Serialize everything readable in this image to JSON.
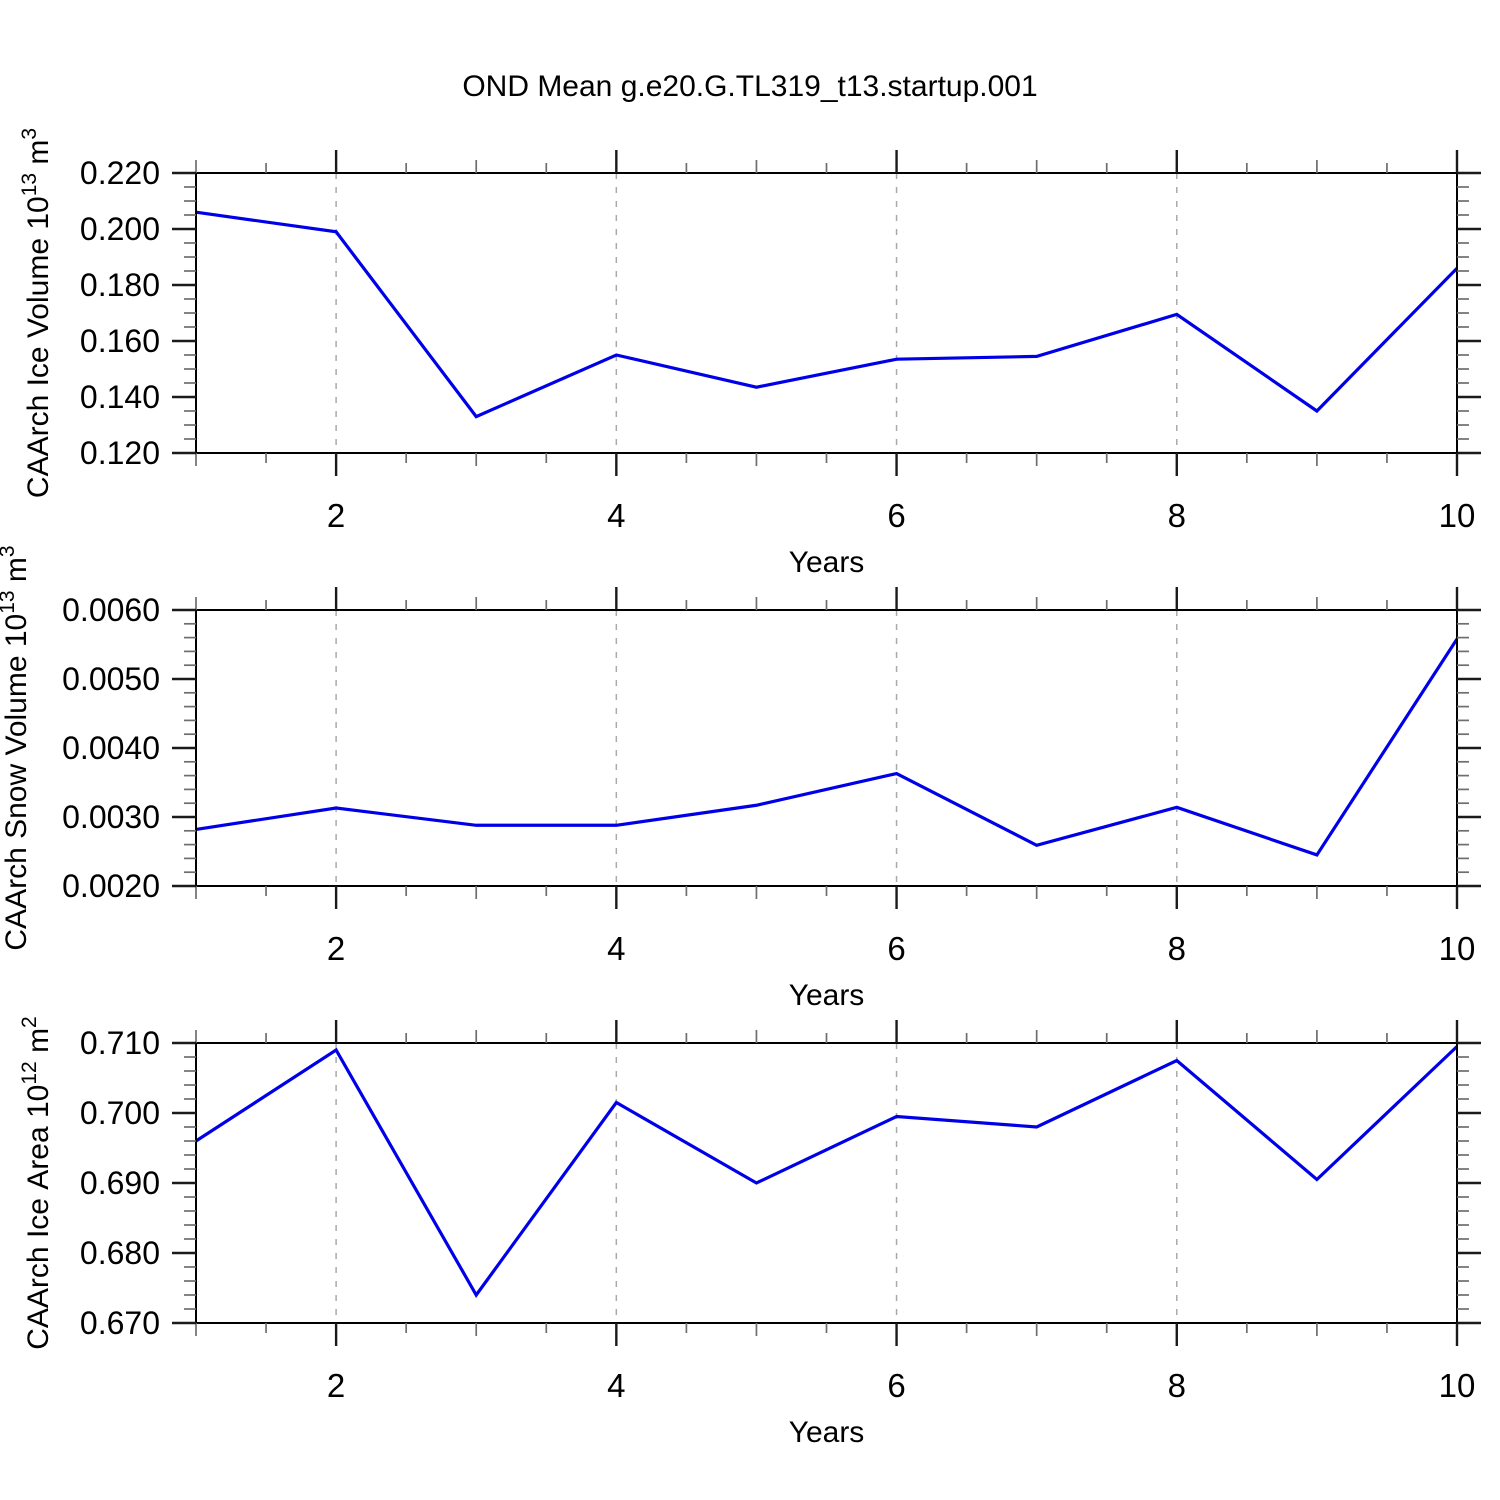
{
  "title": "OND Mean g.e20.G.TL319_t13.startup.001",
  "colors": {
    "line": "#0000e8",
    "grid": "#aaaaaa",
    "axis": "#000000",
    "major_tick": "#1a1a1a",
    "minor_tick": "#6e6e6e",
    "text": "#000000",
    "background": "#ffffff"
  },
  "x_axis": {
    "label": "Years",
    "xlim": [
      1,
      10
    ],
    "major_ticks": [
      2,
      4,
      6,
      8,
      10
    ],
    "major_tick_labels": [
      "2",
      "4",
      "6",
      "8",
      "10"
    ],
    "minor_step": 0.5,
    "gridlines_at": [
      2,
      4,
      6,
      8
    ],
    "grid_style": "dashed"
  },
  "chart_data": [
    {
      "type": "line",
      "name": "caarch-ice-volume",
      "ylabel": "CAArch Ice Volume 10^13 m^3",
      "ylabel_segments": [
        {
          "t": "CAArch Ice Volume 10"
        },
        {
          "t": "13",
          "sup": true
        },
        {
          "t": " m"
        },
        {
          "t": "3",
          "sup": true
        }
      ],
      "xlabel": "Years",
      "x": [
        1,
        2,
        3,
        4,
        5,
        6,
        7,
        8,
        9,
        10
      ],
      "values": [
        0.206,
        0.199,
        0.133,
        0.155,
        0.1435,
        0.1535,
        0.1545,
        0.1695,
        0.135,
        0.186
      ],
      "ylim": [
        0.12,
        0.22
      ],
      "ytick_values": [
        0.12,
        0.14,
        0.16,
        0.18,
        0.2,
        0.22
      ],
      "ytick_labels": [
        "0.120",
        "0.140",
        "0.160",
        "0.180",
        "0.200",
        "0.220"
      ],
      "yminor_step": 0.005,
      "grid": "vertical-dashed",
      "legend": null
    },
    {
      "type": "line",
      "name": "caarch-snow-volume",
      "ylabel": "CAArch Snow Volume 10^13 m^3",
      "ylabel_segments": [
        {
          "t": "CAArch Snow Volume 10"
        },
        {
          "t": "13",
          "sup": true
        },
        {
          "t": " m"
        },
        {
          "t": "3",
          "sup": true
        }
      ],
      "xlabel": "Years",
      "x": [
        1,
        2,
        3,
        4,
        5,
        6,
        7,
        8,
        9,
        10
      ],
      "values": [
        0.00282,
        0.00313,
        0.00288,
        0.00288,
        0.00317,
        0.00363,
        0.00259,
        0.00314,
        0.00245,
        0.00558
      ],
      "ylim": [
        0.002,
        0.006
      ],
      "ytick_values": [
        0.002,
        0.003,
        0.004,
        0.005,
        0.006
      ],
      "ytick_labels": [
        "0.0020",
        "0.0030",
        "0.0040",
        "0.0050",
        "0.0060"
      ],
      "yminor_step": 0.0002,
      "grid": "vertical-dashed",
      "legend": null
    },
    {
      "type": "line",
      "name": "caarch-ice-area",
      "ylabel": "CAArch Ice Area 10^12 m^2",
      "ylabel_segments": [
        {
          "t": "CAArch Ice Area 10"
        },
        {
          "t": "12",
          "sup": true
        },
        {
          "t": " m"
        },
        {
          "t": "2",
          "sup": true
        }
      ],
      "xlabel": "Years",
      "x": [
        1,
        2,
        3,
        4,
        5,
        6,
        7,
        8,
        9,
        10
      ],
      "values": [
        0.696,
        0.709,
        0.674,
        0.7015,
        0.69,
        0.6995,
        0.698,
        0.7075,
        0.6905,
        0.7095
      ],
      "ylim": [
        0.67,
        0.71
      ],
      "ytick_values": [
        0.67,
        0.68,
        0.69,
        0.7,
        0.71
      ],
      "ytick_labels": [
        "0.670",
        "0.680",
        "0.690",
        "0.700",
        "0.710"
      ],
      "yminor_step": 0.002,
      "grid": "vertical-dashed",
      "legend": null
    }
  ]
}
